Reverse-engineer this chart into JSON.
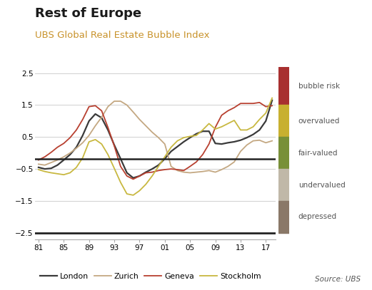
{
  "title": "Rest of Europe",
  "subtitle": "UBS Global Real Estate Bubble Index",
  "title_fontsize": 13,
  "subtitle_fontsize": 9.5,
  "xlim": [
    1980.5,
    2018.5
  ],
  "ylim": [
    -2.7,
    2.7
  ],
  "yticks": [
    -2.5,
    -1.5,
    -0.5,
    0.5,
    1.5,
    2.5
  ],
  "xtick_years": [
    1981,
    1985,
    1989,
    1993,
    1997,
    2001,
    2005,
    2009,
    2013,
    2017
  ],
  "xtick_labels": [
    "81",
    "85",
    "89",
    "93",
    "97",
    "01",
    "05",
    "09",
    "13",
    "17"
  ],
  "hline_y": -0.18,
  "hline_bottom_y": -2.5,
  "source_text": "Source: UBS",
  "subtitle_color": "#c8922a",
  "legend_items": [
    {
      "label": "London",
      "color": "#3a3a3a",
      "lw": 1.6
    },
    {
      "label": "Zurich",
      "color": "#c4a882",
      "lw": 1.3
    },
    {
      "label": "Geneva",
      "color": "#b84030",
      "lw": 1.3
    },
    {
      "label": "Stockholm",
      "color": "#c8b840",
      "lw": 1.3
    }
  ],
  "risk_bands": [
    {
      "label": "bubble risk",
      "color": "#a83030",
      "ymin": 1.5,
      "ymax": 2.7
    },
    {
      "label": "overvalued",
      "color": "#c8b030",
      "ymin": 0.5,
      "ymax": 1.5
    },
    {
      "label": "fair-valued",
      "color": "#789038",
      "ymin": -0.5,
      "ymax": 0.5
    },
    {
      "label": "undervalued",
      "color": "#c0b8a8",
      "ymin": -1.5,
      "ymax": -0.5
    },
    {
      "label": "depressed",
      "color": "#8a7868",
      "ymin": -2.5,
      "ymax": -1.5
    }
  ],
  "london_x": [
    1981,
    1982,
    1983,
    1984,
    1985,
    1986,
    1987,
    1988,
    1989,
    1990,
    1991,
    1992,
    1993,
    1994,
    1995,
    1996,
    1997,
    1998,
    1999,
    2000,
    2001,
    2002,
    2003,
    2004,
    2005,
    2006,
    2007,
    2008,
    2009,
    2010,
    2011,
    2012,
    2013,
    2014,
    2015,
    2016,
    2017,
    2018
  ],
  "london_y": [
    -0.45,
    -0.5,
    -0.48,
    -0.38,
    -0.22,
    -0.05,
    0.18,
    0.55,
    1.0,
    1.22,
    1.1,
    0.72,
    0.25,
    -0.18,
    -0.62,
    -0.78,
    -0.72,
    -0.6,
    -0.5,
    -0.38,
    -0.18,
    0.05,
    0.2,
    0.35,
    0.48,
    0.6,
    0.68,
    0.68,
    0.3,
    0.28,
    0.32,
    0.35,
    0.4,
    0.48,
    0.58,
    0.72,
    1.0,
    1.65
  ],
  "zurich_x": [
    1981,
    1982,
    1983,
    1984,
    1985,
    1986,
    1987,
    1988,
    1989,
    1990,
    1991,
    1992,
    1993,
    1994,
    1995,
    1996,
    1997,
    1998,
    1999,
    2000,
    2001,
    2002,
    2003,
    2004,
    2005,
    2006,
    2007,
    2008,
    2009,
    2010,
    2011,
    2012,
    2013,
    2014,
    2015,
    2016,
    2017,
    2018
  ],
  "zurich_y": [
    -0.35,
    -0.38,
    -0.3,
    -0.22,
    -0.12,
    0.0,
    0.15,
    0.32,
    0.55,
    0.85,
    1.12,
    1.45,
    1.62,
    1.62,
    1.5,
    1.28,
    1.05,
    0.85,
    0.65,
    0.48,
    0.28,
    -0.42,
    -0.55,
    -0.6,
    -0.62,
    -0.6,
    -0.58,
    -0.55,
    -0.6,
    -0.52,
    -0.42,
    -0.28,
    0.05,
    0.25,
    0.38,
    0.4,
    0.32,
    0.38
  ],
  "geneva_x": [
    1981,
    1982,
    1983,
    1984,
    1985,
    1986,
    1987,
    1988,
    1989,
    1990,
    1991,
    1992,
    1993,
    1994,
    1995,
    1996,
    1997,
    1998,
    1999,
    2000,
    2001,
    2002,
    2003,
    2004,
    2005,
    2006,
    2007,
    2008,
    2009,
    2010,
    2011,
    2012,
    2013,
    2014,
    2015,
    2016,
    2017,
    2018
  ],
  "geneva_y": [
    -0.22,
    -0.12,
    0.02,
    0.18,
    0.3,
    0.48,
    0.72,
    1.05,
    1.45,
    1.48,
    1.32,
    0.8,
    0.22,
    -0.42,
    -0.72,
    -0.82,
    -0.72,
    -0.62,
    -0.6,
    -0.55,
    -0.52,
    -0.5,
    -0.52,
    -0.55,
    -0.42,
    -0.28,
    -0.05,
    0.28,
    0.8,
    1.18,
    1.32,
    1.42,
    1.55,
    1.55,
    1.55,
    1.58,
    1.45,
    1.48
  ],
  "stockholm_x": [
    1981,
    1982,
    1983,
    1984,
    1985,
    1986,
    1987,
    1988,
    1989,
    1990,
    1991,
    1992,
    1993,
    1994,
    1995,
    1996,
    1997,
    1998,
    1999,
    2000,
    2001,
    2002,
    2003,
    2004,
    2005,
    2006,
    2007,
    2008,
    2009,
    2010,
    2011,
    2012,
    2013,
    2014,
    2015,
    2016,
    2017,
    2018
  ],
  "stockholm_y": [
    -0.52,
    -0.58,
    -0.62,
    -0.65,
    -0.68,
    -0.62,
    -0.45,
    -0.15,
    0.35,
    0.42,
    0.28,
    -0.05,
    -0.48,
    -0.92,
    -1.28,
    -1.32,
    -1.18,
    -0.98,
    -0.72,
    -0.42,
    -0.12,
    0.18,
    0.38,
    0.48,
    0.52,
    0.55,
    0.72,
    0.92,
    0.75,
    0.82,
    0.92,
    1.02,
    0.72,
    0.72,
    0.82,
    1.05,
    1.25,
    1.72
  ]
}
